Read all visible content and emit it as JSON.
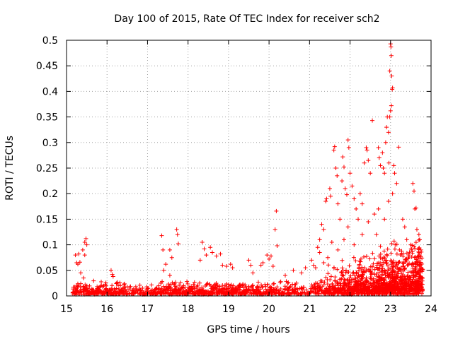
{
  "chart_data": {
    "type": "scatter",
    "title": "Day 100 of 2015, Rate Of TEC Index for receiver sch2",
    "xlabel": "GPS time / hours",
    "ylabel": "ROTI / TECUs",
    "xlim": [
      15,
      24
    ],
    "ylim": [
      0,
      0.5
    ],
    "x_ticks": [
      "15",
      "16",
      "17",
      "18",
      "19",
      "20",
      "21",
      "22",
      "23",
      "24"
    ],
    "y_ticks": [
      "0",
      "0.05",
      "0.1",
      "0.15",
      "0.2",
      "0.25",
      "0.3",
      "0.35",
      "0.4",
      "0.45",
      "0.5"
    ],
    "grid": true,
    "marker": "+",
    "series": [
      {
        "name": "sch2",
        "color": "#ff0000",
        "points": [
          [
            15.22,
            0.08
          ],
          [
            15.25,
            0.065
          ],
          [
            15.28,
            0.062
          ],
          [
            15.3,
            0.082
          ],
          [
            15.33,
            0.066
          ],
          [
            15.4,
            0.09
          ],
          [
            15.45,
            0.105
          ],
          [
            15.48,
            0.112
          ],
          [
            15.5,
            0.1
          ],
          [
            15.45,
            0.08
          ],
          [
            15.35,
            0.045
          ],
          [
            15.42,
            0.035
          ],
          [
            16.1,
            0.05
          ],
          [
            16.13,
            0.042
          ],
          [
            16.15,
            0.038
          ],
          [
            17.35,
            0.118
          ],
          [
            17.38,
            0.09
          ],
          [
            17.45,
            0.062
          ],
          [
            17.4,
            0.05
          ],
          [
            17.55,
            0.04
          ],
          [
            17.72,
            0.13
          ],
          [
            17.74,
            0.12
          ],
          [
            17.76,
            0.102
          ],
          [
            17.6,
            0.075
          ],
          [
            17.55,
            0.09
          ],
          [
            18.35,
            0.105
          ],
          [
            18.4,
            0.092
          ],
          [
            18.3,
            0.07
          ],
          [
            18.45,
            0.08
          ],
          [
            18.55,
            0.095
          ],
          [
            18.6,
            0.085
          ],
          [
            18.7,
            0.078
          ],
          [
            18.8,
            0.082
          ],
          [
            18.85,
            0.06
          ],
          [
            18.95,
            0.058
          ],
          [
            19.05,
            0.062
          ],
          [
            19.1,
            0.055
          ],
          [
            19.5,
            0.07
          ],
          [
            19.55,
            0.06
          ],
          [
            19.6,
            0.045
          ],
          [
            19.8,
            0.06
          ],
          [
            19.85,
            0.065
          ],
          [
            19.95,
            0.08
          ],
          [
            20.0,
            0.072
          ],
          [
            20.05,
            0.078
          ],
          [
            20.18,
            0.166
          ],
          [
            20.15,
            0.13
          ],
          [
            20.2,
            0.098
          ],
          [
            20.1,
            0.058
          ],
          [
            20.4,
            0.04
          ],
          [
            20.6,
            0.05
          ],
          [
            20.8,
            0.045
          ],
          [
            20.9,
            0.055
          ],
          [
            21.05,
            0.07
          ],
          [
            21.1,
            0.06
          ],
          [
            21.2,
            0.095
          ],
          [
            21.25,
            0.11
          ],
          [
            21.3,
            0.14
          ],
          [
            21.35,
            0.13
          ],
          [
            21.4,
            0.185
          ],
          [
            21.42,
            0.19
          ],
          [
            21.5,
            0.21
          ],
          [
            21.52,
            0.195
          ],
          [
            21.6,
            0.285
          ],
          [
            21.62,
            0.292
          ],
          [
            21.65,
            0.25
          ],
          [
            21.68,
            0.235
          ],
          [
            21.7,
            0.18
          ],
          [
            21.75,
            0.15
          ],
          [
            21.8,
            0.225
          ],
          [
            21.82,
            0.272
          ],
          [
            21.85,
            0.252
          ],
          [
            21.88,
            0.21
          ],
          [
            21.92,
            0.198
          ],
          [
            21.95,
            0.305
          ],
          [
            21.97,
            0.29
          ],
          [
            22.0,
            0.24
          ],
          [
            22.05,
            0.215
          ],
          [
            22.1,
            0.19
          ],
          [
            22.15,
            0.17
          ],
          [
            22.2,
            0.15
          ],
          [
            22.25,
            0.2
          ],
          [
            22.3,
            0.18
          ],
          [
            22.35,
            0.26
          ],
          [
            22.4,
            0.29
          ],
          [
            22.42,
            0.285
          ],
          [
            22.45,
            0.265
          ],
          [
            22.5,
            0.24
          ],
          [
            22.55,
            0.343
          ],
          [
            22.6,
            0.16
          ],
          [
            22.65,
            0.12
          ],
          [
            22.7,
            0.29
          ],
          [
            22.72,
            0.27
          ],
          [
            22.75,
            0.255
          ],
          [
            22.8,
            0.28
          ],
          [
            22.82,
            0.25
          ],
          [
            22.85,
            0.24
          ],
          [
            22.88,
            0.3
          ],
          [
            22.9,
            0.33
          ],
          [
            22.92,
            0.35
          ],
          [
            22.95,
            0.32
          ],
          [
            22.96,
            0.26
          ],
          [
            22.98,
            0.44
          ],
          [
            23.0,
            0.493
          ],
          [
            23.01,
            0.487
          ],
          [
            23.02,
            0.47
          ],
          [
            23.03,
            0.43
          ],
          [
            23.05,
            0.407
          ],
          [
            23.04,
            0.404
          ],
          [
            23.02,
            0.372
          ],
          [
            23.0,
            0.362
          ],
          [
            22.98,
            0.35
          ],
          [
            23.08,
            0.255
          ],
          [
            23.1,
            0.24
          ],
          [
            23.15,
            0.22
          ],
          [
            23.2,
            0.291
          ],
          [
            23.3,
            0.15
          ],
          [
            23.35,
            0.135
          ],
          [
            23.4,
            0.11
          ],
          [
            23.45,
            0.08
          ],
          [
            23.5,
            0.1
          ],
          [
            23.55,
            0.22
          ],
          [
            23.58,
            0.205
          ],
          [
            23.6,
            0.17
          ],
          [
            23.63,
            0.172
          ],
          [
            23.65,
            0.13
          ],
          [
            23.7,
            0.12
          ],
          [
            23.72,
            0.11
          ],
          [
            23.75,
            0.09
          ],
          [
            23.05,
            0.2
          ],
          [
            22.95,
            0.185
          ],
          [
            22.85,
            0.15
          ],
          [
            22.7,
            0.17
          ],
          [
            22.45,
            0.145
          ],
          [
            22.3,
            0.12
          ],
          [
            22.1,
            0.1
          ],
          [
            21.95,
            0.135
          ],
          [
            21.85,
            0.11
          ],
          [
            21.7,
            0.09
          ],
          [
            21.55,
            0.105
          ],
          [
            21.45,
            0.075
          ],
          [
            21.35,
            0.065
          ],
          [
            21.25,
            0.085
          ],
          [
            21.15,
            0.055
          ]
        ],
        "baseline_band": {
          "x_range": [
            15.15,
            23.8
          ],
          "y_range": [
            0.003,
            0.03
          ]
        },
        "late_band": {
          "x_range": [
            21.0,
            23.8
          ],
          "y_range": [
            0.01,
            0.09
          ]
        }
      }
    ]
  }
}
